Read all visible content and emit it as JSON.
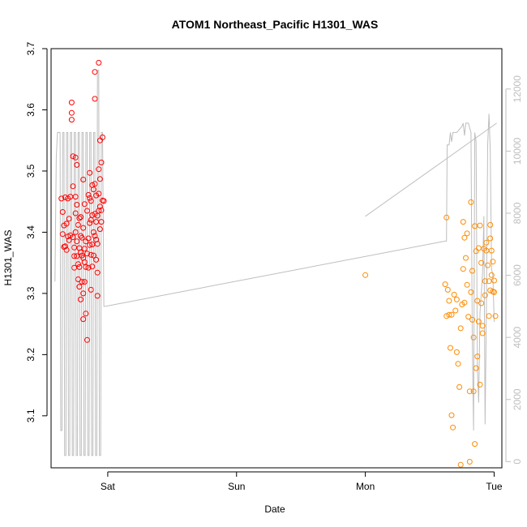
{
  "chart_data": {
    "type": "scatter",
    "title": "ATOM1 Northeast_Pacific H1301_WAS",
    "xlabel": "Date",
    "ylabel": "H1301_WAS",
    "x_tick_labels": [
      "Sat",
      "Sun",
      "Mon",
      "Tue"
    ],
    "x_tick_positions": [
      1.0,
      2.0,
      3.0,
      4.0
    ],
    "x_range": [
      0.56,
      4.06
    ],
    "x_unit_note": "",
    "ylim": [
      3.015,
      3.7
    ],
    "yticks": [
      "3.1",
      "3.2",
      "3.3",
      "3.4",
      "3.5",
      "3.6",
      "3.7"
    ],
    "y2lim": [
      -200,
      13300
    ],
    "y2ticks": [
      "0",
      "2000",
      "4000",
      "6000",
      "8000",
      "10000",
      "12000"
    ],
    "colors": {
      "series_a": "#ff0000",
      "series_b": "#ff8c00",
      "altitude_line": "#bebebe",
      "axis": "#000000",
      "axis2": "#bebebe"
    },
    "series": [
      {
        "values": [
          [
            0.64,
            3.455
          ],
          [
            0.65,
            3.433
          ],
          [
            0.65,
            3.397
          ],
          [
            0.66,
            3.411
          ],
          [
            0.66,
            3.376
          ],
          [
            0.67,
            3.457
          ],
          [
            0.67,
            3.377
          ],
          [
            0.68,
            3.414
          ],
          [
            0.68,
            3.371
          ],
          [
            0.69,
            3.393
          ],
          [
            0.69,
            3.455
          ],
          [
            0.7,
            3.422
          ],
          [
            0.7,
            3.387
          ],
          [
            0.71,
            3.458
          ],
          [
            0.71,
            3.395
          ],
          [
            0.72,
            3.612
          ],
          [
            0.72,
            3.595
          ],
          [
            0.72,
            3.584
          ],
          [
            0.73,
            3.524
          ],
          [
            0.73,
            3.475
          ],
          [
            0.73,
            3.392
          ],
          [
            0.74,
            3.375
          ],
          [
            0.74,
            3.361
          ],
          [
            0.74,
            3.342
          ],
          [
            0.75,
            3.522
          ],
          [
            0.75,
            3.458
          ],
          [
            0.75,
            3.431
          ],
          [
            0.75,
            3.4
          ],
          [
            0.76,
            3.51
          ],
          [
            0.76,
            3.445
          ],
          [
            0.76,
            3.385
          ],
          [
            0.76,
            3.361
          ],
          [
            0.77,
            3.412
          ],
          [
            0.77,
            3.348
          ],
          [
            0.77,
            3.323
          ],
          [
            0.78,
            3.423
          ],
          [
            0.78,
            3.374
          ],
          [
            0.78,
            3.343
          ],
          [
            0.78,
            3.311
          ],
          [
            0.79,
            3.425
          ],
          [
            0.79,
            3.394
          ],
          [
            0.79,
            3.367
          ],
          [
            0.79,
            3.29
          ],
          [
            0.8,
            3.391
          ],
          [
            0.8,
            3.362
          ],
          [
            0.8,
            3.319
          ],
          [
            0.81,
            3.486
          ],
          [
            0.81,
            3.407
          ],
          [
            0.81,
            3.358
          ],
          [
            0.81,
            3.3
          ],
          [
            0.81,
            3.258
          ],
          [
            0.82,
            3.446
          ],
          [
            0.82,
            3.373
          ],
          [
            0.82,
            3.351
          ],
          [
            0.82,
            3.319
          ],
          [
            0.83,
            3.385
          ],
          [
            0.83,
            3.343
          ],
          [
            0.83,
            3.267
          ],
          [
            0.84,
            3.435
          ],
          [
            0.84,
            3.365
          ],
          [
            0.84,
            3.224
          ],
          [
            0.85,
            3.461
          ],
          [
            0.85,
            3.39
          ],
          [
            0.85,
            3.342
          ],
          [
            0.86,
            3.497
          ],
          [
            0.86,
            3.456
          ],
          [
            0.86,
            3.415
          ],
          [
            0.86,
            3.379
          ],
          [
            0.87,
            3.451
          ],
          [
            0.87,
            3.42
          ],
          [
            0.87,
            3.363
          ],
          [
            0.87,
            3.306
          ],
          [
            0.88,
            3.477
          ],
          [
            0.88,
            3.428
          ],
          [
            0.88,
            3.38
          ],
          [
            0.88,
            3.344
          ],
          [
            0.89,
            3.47
          ],
          [
            0.89,
            3.4
          ],
          [
            0.89,
            3.362
          ],
          [
            0.9,
            3.662
          ],
          [
            0.9,
            3.618
          ],
          [
            0.9,
            3.479
          ],
          [
            0.9,
            3.43
          ],
          [
            0.9,
            3.394
          ],
          [
            0.91,
            3.46
          ],
          [
            0.91,
            3.417
          ],
          [
            0.91,
            3.388
          ],
          [
            0.91,
            3.355
          ],
          [
            0.92,
            3.427
          ],
          [
            0.92,
            3.381
          ],
          [
            0.92,
            3.334
          ],
          [
            0.92,
            3.296
          ],
          [
            0.93,
            3.677
          ],
          [
            0.93,
            3.503
          ],
          [
            0.93,
            3.463
          ],
          [
            0.93,
            3.435
          ],
          [
            0.94,
            3.55
          ],
          [
            0.94,
            3.487
          ],
          [
            0.94,
            3.442
          ],
          [
            0.94,
            3.405
          ],
          [
            0.95,
            3.514
          ],
          [
            0.95,
            3.436
          ],
          [
            0.95,
            3.417
          ],
          [
            0.96,
            3.555
          ],
          [
            0.96,
            3.452
          ],
          [
            0.97,
            3.451
          ]
        ]
      },
      {
        "values": [
          [
            3.0,
            3.33
          ],
          [
            3.62,
            3.315
          ],
          [
            3.63,
            3.263
          ],
          [
            3.63,
            3.424
          ],
          [
            3.64,
            3.306
          ],
          [
            3.65,
            3.265
          ],
          [
            3.65,
            3.288
          ],
          [
            3.66,
            3.211
          ],
          [
            3.67,
            3.101
          ],
          [
            3.67,
            3.265
          ],
          [
            3.68,
            3.081
          ],
          [
            3.69,
            3.298
          ],
          [
            3.7,
            3.272
          ],
          [
            3.71,
            3.204
          ],
          [
            3.71,
            3.29
          ],
          [
            3.72,
            3.185
          ],
          [
            3.73,
            3.147
          ],
          [
            3.74,
            3.02
          ],
          [
            3.74,
            3.243
          ],
          [
            3.75,
            3.282
          ],
          [
            3.76,
            3.34
          ],
          [
            3.76,
            3.417
          ],
          [
            3.77,
            3.285
          ],
          [
            3.77,
            3.391
          ],
          [
            3.78,
            3.358
          ],
          [
            3.79,
            3.314
          ],
          [
            3.79,
            3.398
          ],
          [
            3.8,
            3.262
          ],
          [
            3.81,
            3.14
          ],
          [
            3.81,
            3.025
          ],
          [
            3.82,
            3.302
          ],
          [
            3.82,
            3.449
          ],
          [
            3.83,
            3.337
          ],
          [
            3.83,
            3.257
          ],
          [
            3.84,
            3.228
          ],
          [
            3.85,
            3.054
          ],
          [
            3.85,
            3.41
          ],
          [
            3.86,
            3.369
          ],
          [
            3.87,
            3.288
          ],
          [
            3.88,
            3.254
          ],
          [
            3.88,
            3.374
          ],
          [
            3.89,
            3.411
          ],
          [
            3.9,
            3.35
          ],
          [
            3.9,
            3.284
          ],
          [
            3.91,
            3.247
          ],
          [
            3.92,
            3.373
          ],
          [
            3.93,
            3.297
          ],
          [
            3.93,
            3.32
          ],
          [
            3.94,
            3.383
          ],
          [
            3.95,
            3.346
          ],
          [
            3.96,
            3.32
          ],
          [
            3.96,
            3.263
          ],
          [
            3.97,
            3.39
          ],
          [
            3.97,
            3.305
          ],
          [
            3.98,
            3.33
          ],
          [
            3.98,
            3.37
          ],
          [
            3.99,
            3.352
          ],
          [
            4.0,
            3.302
          ],
          [
            4.0,
            3.321
          ],
          [
            4.01,
            3.263
          ],
          [
            3.84,
            3.14
          ],
          [
            3.86,
            3.178
          ],
          [
            3.87,
            3.197
          ],
          [
            3.89,
            3.151
          ],
          [
            3.91,
            3.235
          ],
          [
            3.94,
            3.37
          ],
          [
            3.97,
            3.412
          ],
          [
            3.99,
            3.303
          ]
        ]
      }
    ],
    "altitude_line": {
      "values": [
        [
          0.59,
          5800
        ],
        [
          0.6,
          9800
        ],
        [
          0.61,
          10600
        ],
        [
          0.62,
          10600
        ],
        [
          0.63,
          10600
        ],
        [
          0.635,
          1000
        ],
        [
          0.645,
          1000
        ],
        [
          0.65,
          10600
        ],
        [
          0.66,
          10600
        ],
        [
          0.665,
          200
        ],
        [
          0.675,
          200
        ],
        [
          0.68,
          10600
        ],
        [
          0.69,
          10600
        ],
        [
          0.695,
          200
        ],
        [
          0.705,
          200
        ],
        [
          0.71,
          10600
        ],
        [
          0.72,
          10600
        ],
        [
          0.725,
          200
        ],
        [
          0.735,
          200
        ],
        [
          0.74,
          10600
        ],
        [
          0.75,
          10600
        ],
        [
          0.755,
          200
        ],
        [
          0.765,
          200
        ],
        [
          0.77,
          10600
        ],
        [
          0.78,
          10600
        ],
        [
          0.785,
          200
        ],
        [
          0.795,
          200
        ],
        [
          0.8,
          10600
        ],
        [
          0.81,
          10600
        ],
        [
          0.815,
          200
        ],
        [
          0.825,
          200
        ],
        [
          0.83,
          10600
        ],
        [
          0.84,
          10600
        ],
        [
          0.845,
          200
        ],
        [
          0.855,
          200
        ],
        [
          0.86,
          10600
        ],
        [
          0.87,
          10600
        ],
        [
          0.875,
          200
        ],
        [
          0.885,
          200
        ],
        [
          0.89,
          10600
        ],
        [
          0.9,
          10600
        ],
        [
          0.905,
          200
        ],
        [
          0.915,
          200
        ],
        [
          0.92,
          12600
        ],
        [
          0.93,
          12600
        ],
        [
          0.935,
          200
        ],
        [
          0.945,
          200
        ],
        [
          0.95,
          10600
        ],
        [
          0.96,
          10600
        ],
        [
          0.97,
          5000
        ],
        [
          0.98,
          5000
        ],
        [
          3.62,
          7100
        ],
        [
          3.63,
          7100
        ],
        [
          3.635,
          10200
        ],
        [
          3.65,
          10200
        ],
        [
          3.66,
          10600
        ],
        [
          3.67,
          10300
        ],
        [
          3.68,
          10600
        ],
        [
          3.7,
          10600
        ],
        [
          3.71,
          10600
        ],
        [
          3.75,
          10800
        ],
        [
          3.76,
          10900
        ],
        [
          3.77,
          10500
        ],
        [
          3.78,
          10900
        ],
        [
          3.8,
          10900
        ],
        [
          3.82,
          10600
        ],
        [
          3.83,
          4000
        ],
        [
          3.84,
          1000
        ],
        [
          3.85,
          10600
        ],
        [
          3.86,
          10300
        ],
        [
          3.87,
          3000
        ],
        [
          3.88,
          1900
        ],
        [
          3.89,
          4800
        ],
        [
          3.9,
          5400
        ],
        [
          3.91,
          6100
        ],
        [
          3.92,
          7900
        ],
        [
          3.93,
          1200
        ],
        [
          3.94,
          4800
        ],
        [
          3.95,
          10200
        ],
        [
          3.96,
          11200
        ],
        [
          3.97,
          10000
        ],
        [
          3.98,
          6200
        ],
        [
          3.99,
          6000
        ],
        [
          4.0,
          4500
        ]
      ],
      "transit_segment": [
        [
          0.98,
          5000
        ],
        [
          3.62,
          7100
        ]
      ],
      "mon_segment": [
        [
          3.0,
          7900
        ],
        [
          4.02,
          10900
        ]
      ]
    }
  }
}
